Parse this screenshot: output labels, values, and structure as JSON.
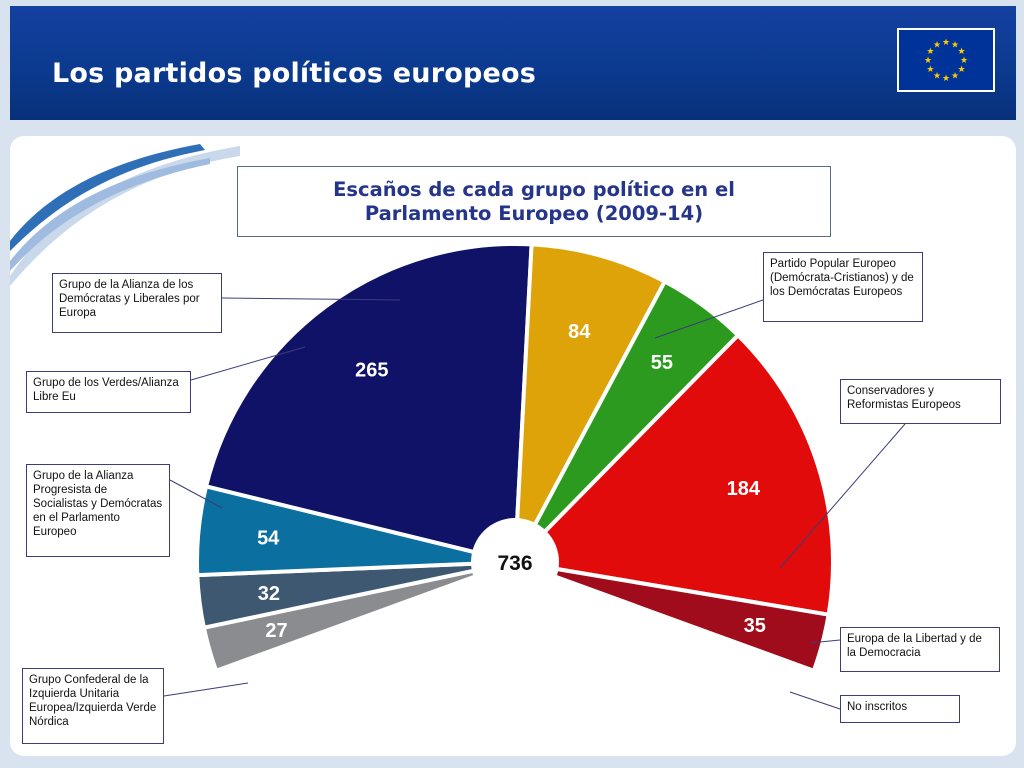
{
  "header": {
    "title": "Los partidos políticos europeos"
  },
  "colors": {
    "header_bg": "#0b3a8f",
    "flag_blue": "#003399",
    "flag_star": "#ffcc00"
  },
  "chart_data": {
    "type": "pie",
    "subtype": "semicircle",
    "title": "Escaños de cada grupo político en el Parlamento Europeo (2009-14)",
    "total": 736,
    "slices": [
      {
        "id": "ni",
        "value": 27,
        "label": "No inscritos",
        "color": "#8a8c90"
      },
      {
        "id": "efd",
        "value": 32,
        "label": "Europa de la Libertad y de la Democracia",
        "color": "#3e5872"
      },
      {
        "id": "ecr",
        "value": 54,
        "label": "Conservadores y Reformistas Europeos",
        "color": "#0b6f9f"
      },
      {
        "id": "epp",
        "value": 265,
        "label": "Partido Popular Europeo (Demócrata-Cristianos) y de los Demócratas Europeos",
        "color": "#101268"
      },
      {
        "id": "alde",
        "value": 84,
        "label": "Grupo de la Alianza de los Demócratas y Liberales por Europa",
        "color": "#dfa30a"
      },
      {
        "id": "greens",
        "value": 55,
        "label": "Grupo de los Verdes/Alianza Libre Eu",
        "color": "#2c9a1e"
      },
      {
        "id": "sd",
        "value": 184,
        "label": "Grupo de la Alianza Progresista de Socialistas y Demócratas en el Parlamento Europeo",
        "color": "#e20b0b"
      },
      {
        "id": "gue",
        "value": 35,
        "label": "Grupo Confederal de la Izquierda Unitaria Europea/Izquierda Verde Nórdica",
        "color": "#a00c1c"
      }
    ]
  }
}
